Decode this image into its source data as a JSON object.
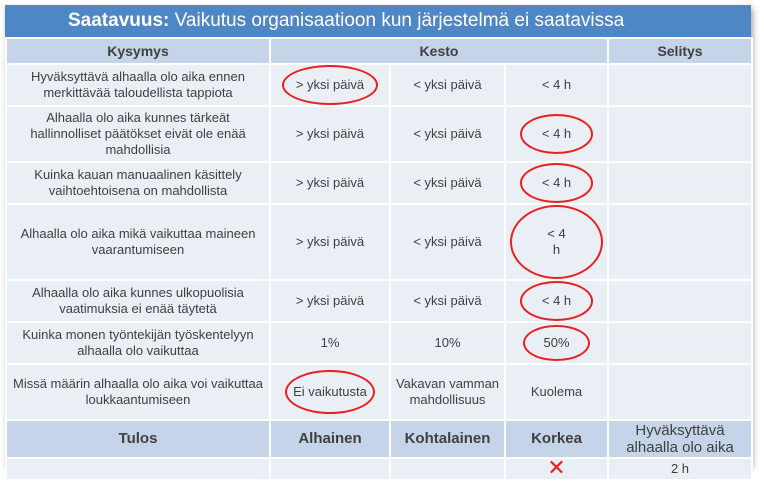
{
  "title": {
    "bold": "Saatavuus:",
    "rest": " Vaikutus organisaatioon kun järjestelmä ei saatavissa"
  },
  "headers": {
    "question": "Kysymys",
    "duration": "Kesto",
    "explanation": "Selitys"
  },
  "rows": [
    {
      "q": "Hyväksyttävä alhaalla olo aika ennen merkittävää taloudellista tappiota",
      "a": "> yksi päivä",
      "b": "< yksi päivä",
      "c": "< 4 h",
      "sel": ""
    },
    {
      "q": "Alhaalla olo aika kunnes tärkeät hallinnolliset päätökset eivät ole enää mahdollisia",
      "a": "> yksi päivä",
      "b": "< yksi päivä",
      "c": "< 4 h",
      "sel": ""
    },
    {
      "q": "Kuinka kauan manuaalinen käsittely vaihtoehtoisena on mahdollista",
      "a": "> yksi päivä",
      "b": "< yksi päivä",
      "c": "< 4 h",
      "sel": ""
    },
    {
      "q": "Alhaalla olo aika mikä vaikuttaa maineen vaarantumiseen",
      "a": "> yksi päivä",
      "b": "< yksi päivä",
      "c": "< 4 h",
      "sel": ""
    },
    {
      "q": "Alhaalla olo aika kunnes ulkopuolisia vaatimuksia ei enää täytetä",
      "a": "> yksi päivä",
      "b": "< yksi päivä",
      "c": "< 4 h",
      "sel": ""
    },
    {
      "q": "Kuinka monen työntekijän työskentelyyn alhaalla olo vaikuttaa",
      "a": "1%",
      "b": "10%",
      "c": "50%",
      "sel": ""
    },
    {
      "q": "Missä määrin alhaalla olo aika voi vaikuttaa loukkaantumiseen",
      "a": "Ei vaikutusta",
      "b": "Vakavan vamman mahdollisuus",
      "c": "Kuolema",
      "sel": ""
    }
  ],
  "footer": {
    "result": "Tulos",
    "low": "Alhainen",
    "medium": "Kohtalainen",
    "high": "Korkea",
    "acceptable": "Hyväksyttävä alhaalla olo aika"
  },
  "last": {
    "mark": "✕",
    "value": "2 h"
  },
  "colors": {
    "title_bg": "#4f86c6",
    "header_bg": "#c5d4e8",
    "cell_bg": "#eaeef5",
    "circle": "#e8201e"
  }
}
